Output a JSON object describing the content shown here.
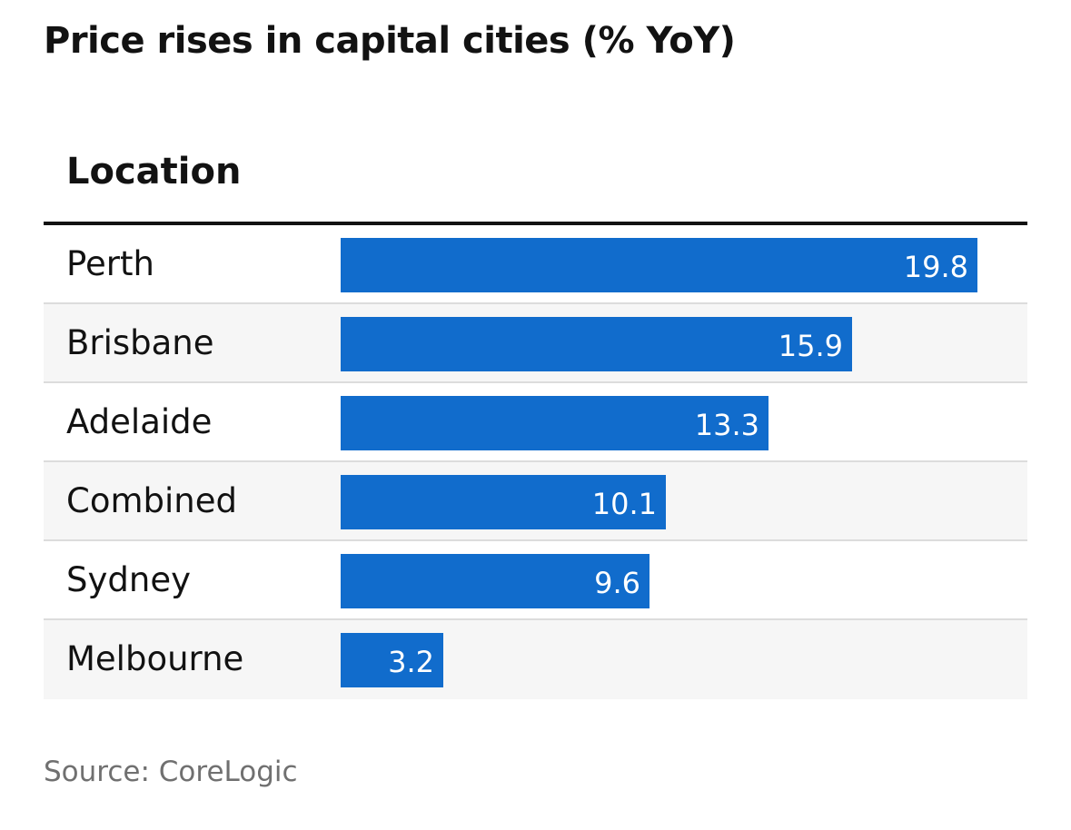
{
  "chart_data": {
    "type": "bar",
    "orientation": "horizontal",
    "title": "Price rises in capital cities (% YoY)",
    "column_header": "Location",
    "categories": [
      "Perth",
      "Brisbane",
      "Adelaide",
      "Combined",
      "Sydney",
      "Melbourne"
    ],
    "values": [
      19.8,
      15.9,
      13.3,
      10.1,
      9.6,
      3.2
    ],
    "value_labels": [
      "19.8",
      "15.9",
      "13.3",
      "10.1",
      "9.6",
      "3.2"
    ],
    "xlim": [
      0,
      21.2
    ],
    "grid": false,
    "legend": "none",
    "source": "Source: CoreLogic"
  },
  "colors": {
    "bar": "#116ccc",
    "bar_label": "#ffffff",
    "text": "#121212",
    "source_text": "#707070",
    "row_alt_bg": "#f6f6f6",
    "row_divider": "#dcdcdc"
  }
}
